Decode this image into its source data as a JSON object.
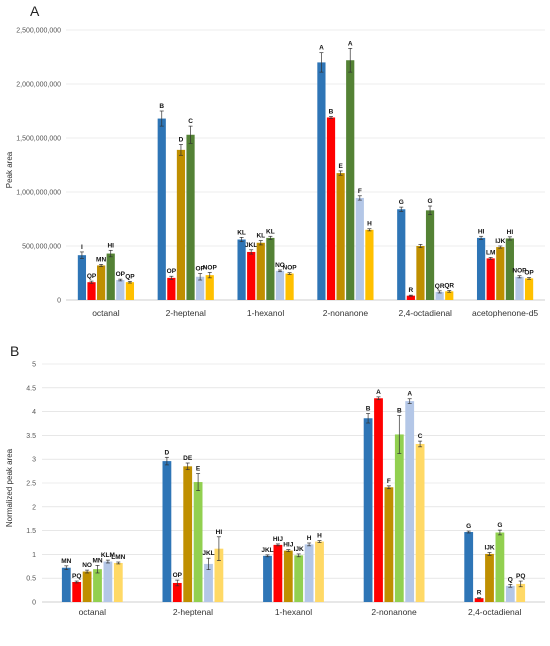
{
  "chart_data": [
    {
      "panel": "A",
      "type": "bar",
      "ylabel": "Peak area",
      "ylim": [
        0,
        2500000000
      ],
      "yticks": [
        0,
        500000000,
        1000000000,
        1500000000,
        2000000000,
        2500000000
      ],
      "ytick_labels": [
        "0",
        "500,000,000",
        "1,000,000,000",
        "1,500,000,000",
        "2,000,000,000",
        "2,500,000,000"
      ],
      "grid": true,
      "legend": "none",
      "colors": [
        "#2e75b6",
        "#ff0000",
        "#bf8f00",
        "#548235",
        "#b4c7e7",
        "#ffc000"
      ],
      "categories": [
        "octanal",
        "2-heptenal",
        "1-hexanol",
        "2-nonanone",
        "2,4-octadienal",
        "acetophenone-d5"
      ],
      "values": [
        [
          415000000,
          165000000,
          320000000,
          430000000,
          185000000,
          165000000
        ],
        [
          1680000000,
          205000000,
          1390000000,
          1530000000,
          215000000,
          230000000
        ],
        [
          560000000,
          445000000,
          530000000,
          575000000,
          270000000,
          245000000
        ],
        [
          2200000000,
          1690000000,
          1175000000,
          2220000000,
          945000000,
          650000000
        ],
        [
          840000000,
          40000000,
          500000000,
          830000000,
          75000000,
          80000000
        ],
        [
          575000000,
          385000000,
          490000000,
          570000000,
          215000000,
          200000000
        ]
      ],
      "errors": [
        [
          30000000,
          10000000,
          10000000,
          30000000,
          8000000,
          8000000
        ],
        [
          70000000,
          15000000,
          50000000,
          80000000,
          30000000,
          25000000
        ],
        [
          20000000,
          20000000,
          20000000,
          15000000,
          8000000,
          8000000
        ],
        [
          90000000,
          10000000,
          20000000,
          110000000,
          20000000,
          10000000
        ],
        [
          20000000,
          5000000,
          15000000,
          40000000,
          10000000,
          8000000
        ],
        [
          15000000,
          10000000,
          10000000,
          15000000,
          10000000,
          8000000
        ]
      ],
      "labels": [
        [
          "I",
          "QP",
          "MN",
          "HI",
          "OP",
          "QP"
        ],
        [
          "B",
          "OP",
          "D",
          "C",
          "OP",
          "NOP"
        ],
        [
          "KL",
          "JKL",
          "KL",
          "KL",
          "NO",
          "NOP"
        ],
        [
          "A",
          "B",
          "E",
          "A",
          "F",
          "H"
        ],
        [
          "G",
          "R",
          "",
          "G",
          "QR",
          "QR"
        ],
        [
          "HI",
          "LM",
          "IJK",
          "HI",
          "NOP",
          "OP"
        ]
      ]
    },
    {
      "panel": "B",
      "type": "bar",
      "ylabel": "Normalized peak area",
      "ylim": [
        0,
        5
      ],
      "yticks": [
        0,
        0.5,
        1,
        1.5,
        2,
        2.5,
        3,
        3.5,
        4,
        4.5,
        5
      ],
      "ytick_labels": [
        "0",
        "0.5",
        "1",
        "1.5",
        "2",
        "2.5",
        "3",
        "3.5",
        "4",
        "4.5",
        "5"
      ],
      "grid": true,
      "legend": "none",
      "colors": [
        "#2e75b6",
        "#ff0000",
        "#bf8f00",
        "#92d050",
        "#b4c7e7",
        "#ffd966"
      ],
      "categories": [
        "octanal",
        "2-heptenal",
        "1-hexanol",
        "2-nonanone",
        "2,4-octadienal"
      ],
      "values": [
        [
          0.72,
          0.42,
          0.64,
          0.69,
          0.85,
          0.82
        ],
        [
          2.96,
          0.4,
          2.85,
          2.52,
          0.8,
          1.12
        ],
        [
          0.97,
          1.2,
          1.08,
          0.98,
          1.21,
          1.27
        ],
        [
          3.86,
          4.28,
          2.41,
          3.52,
          4.22,
          3.32
        ],
        [
          1.47,
          0.08,
          1.01,
          1.46,
          0.34,
          0.38
        ]
      ],
      "errors": [
        [
          0.04,
          0.02,
          0.03,
          0.08,
          0.03,
          0.02
        ],
        [
          0.08,
          0.06,
          0.07,
          0.18,
          0.12,
          0.25
        ],
        [
          0.02,
          0.02,
          0.02,
          0.03,
          0.03,
          0.02
        ],
        [
          0.1,
          0.03,
          0.03,
          0.4,
          0.05,
          0.06
        ],
        [
          0.02,
          0.01,
          0.03,
          0.05,
          0.03,
          0.06
        ]
      ],
      "labels": [
        [
          "MN",
          "PQ",
          "NO",
          "MN",
          "KLM",
          "LMN"
        ],
        [
          "D",
          "OP",
          "DE",
          "E",
          "JKL",
          "HI"
        ],
        [
          "JKL",
          "HIJ",
          "HIJ",
          "IJK",
          "H",
          "H"
        ],
        [
          "B",
          "A",
          "F",
          "B",
          "A",
          "C"
        ],
        [
          "G",
          "R",
          "IJK",
          "G",
          "Q",
          "PQ"
        ]
      ]
    }
  ]
}
